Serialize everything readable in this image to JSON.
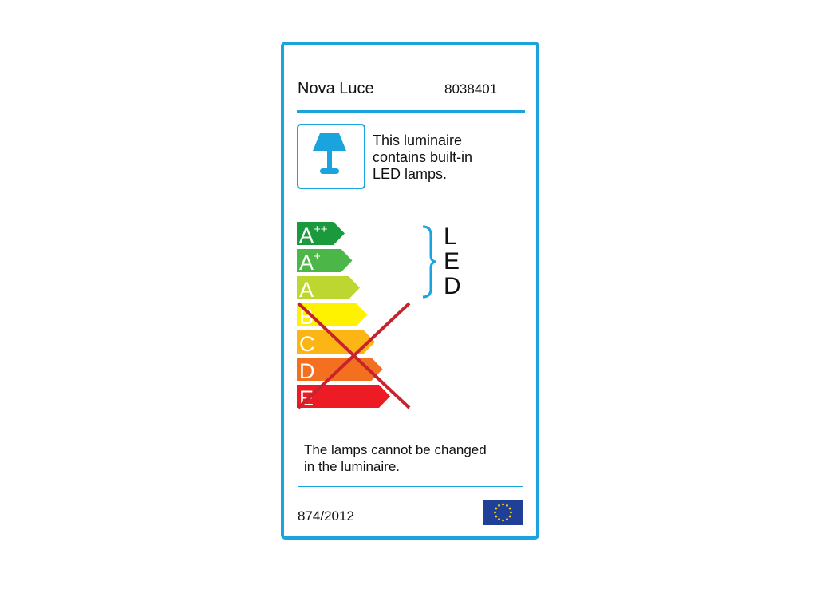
{
  "brand": "Nova Luce",
  "model": "8038401",
  "info_text": [
    "This luminaire",
    "contains built-in",
    "LED lamps."
  ],
  "classes": [
    {
      "label": "A++",
      "color": "#1a9a3c"
    },
    {
      "label": "A+",
      "color": "#4cb748"
    },
    {
      "label": "A",
      "color": "#bed630"
    },
    {
      "label": "B",
      "color": "#fff200"
    },
    {
      "label": "C",
      "color": "#fbb616"
    },
    {
      "label": "D",
      "color": "#f37021"
    },
    {
      "label": "E",
      "color": "#ed1c24"
    }
  ],
  "compatible_letters": [
    "L",
    "E",
    "D"
  ],
  "crossed_classes": [
    "B",
    "C",
    "D",
    "E"
  ],
  "notice": [
    "The lamps cannot be changed",
    "in the luminaire."
  ],
  "regulation": "874/2012",
  "colors": {
    "border": "#1aa3dc",
    "cross": "#c8232c"
  },
  "icons": [
    "lamp-icon",
    "eu-flag-icon"
  ]
}
